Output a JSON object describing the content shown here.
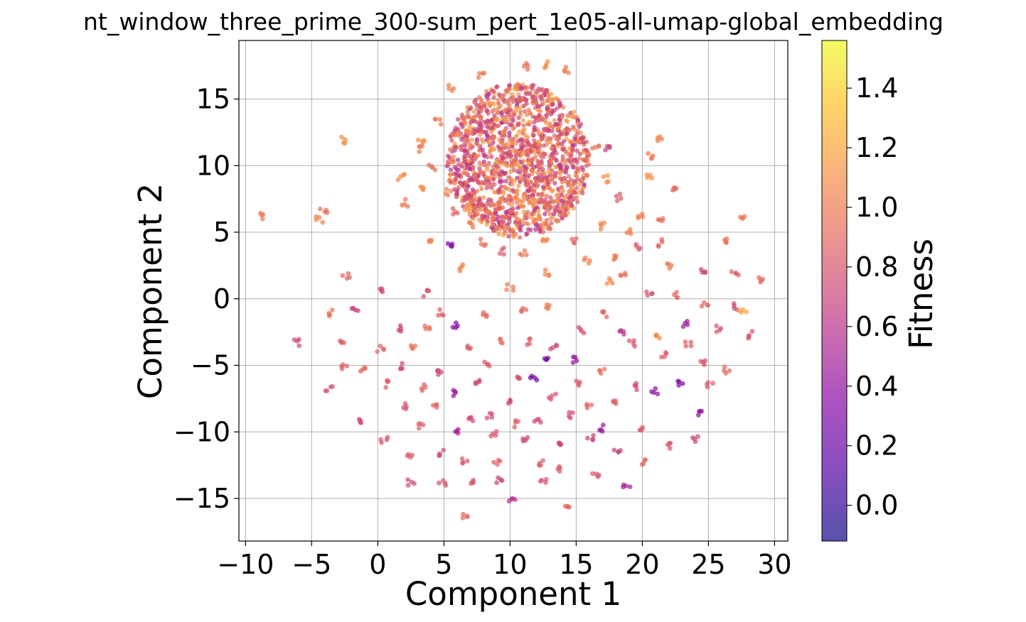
{
  "chart_data": {
    "type": "scatter",
    "title": "nt_window_three_prime_300-sum_pert_1e05-all-umap-global_embedding",
    "xlabel": "Component 1",
    "ylabel": "Component 2",
    "xlim": [
      -10.5,
      31
    ],
    "ylim": [
      -18.2,
      19.4
    ],
    "xticks": [
      -10,
      -5,
      0,
      5,
      10,
      15,
      20,
      25,
      30
    ],
    "xtick_labels": [
      "−10",
      "−5",
      "0",
      "5",
      "10",
      "15",
      "20",
      "25",
      "30"
    ],
    "yticks": [
      -15,
      -10,
      -5,
      0,
      5,
      10,
      15
    ],
    "ytick_labels": [
      "−15",
      "−10",
      "−5",
      "0",
      "5",
      "10",
      "15"
    ],
    "grid": true,
    "colormap": "plasma",
    "point_alpha": 0.7,
    "colorbar": {
      "label": "Fitness",
      "range": [
        -0.12,
        1.56
      ],
      "ticks": [
        0.0,
        0.2,
        0.4,
        0.6,
        0.8,
        1.0,
        1.2,
        1.4
      ],
      "tick_labels": [
        "0.0",
        "0.2",
        "0.4",
        "0.6",
        "0.8",
        "1.0",
        "1.2",
        "1.4"
      ]
    },
    "points": [
      {
        "x": -8.6,
        "y": 6.2,
        "fitness": 1.0
      },
      {
        "x": -4.4,
        "y": 6.0,
        "fitness": 1.05
      },
      {
        "x": -4.1,
        "y": 6.6,
        "fitness": 0.95
      },
      {
        "x": -2.5,
        "y": 11.9,
        "fitness": 1.1
      },
      {
        "x": -2.4,
        "y": 1.8,
        "fitness": 0.9
      },
      {
        "x": -6.2,
        "y": -3.3,
        "fitness": 0.75
      },
      {
        "x": -3.7,
        "y": -6.8,
        "fitness": 0.8
      },
      {
        "x": -2.8,
        "y": -3.3,
        "fitness": 0.85
      },
      {
        "x": -3.5,
        "y": -1.1,
        "fitness": 0.95
      },
      {
        "x": -1.7,
        "y": -0.7,
        "fitness": 0.7
      },
      {
        "x": -1.1,
        "y": -5.4,
        "fitness": 0.9
      },
      {
        "x": -1.3,
        "y": -9.1,
        "fitness": 0.75
      },
      {
        "x": -2.6,
        "y": -5.2,
        "fitness": 0.85
      },
      {
        "x": 0.4,
        "y": 0.6,
        "fitness": 0.75
      },
      {
        "x": 0.2,
        "y": -3.7,
        "fitness": 0.9
      },
      {
        "x": 0.7,
        "y": -6.4,
        "fitness": 0.85
      },
      {
        "x": 0.5,
        "y": -10.6,
        "fitness": 0.8
      },
      {
        "x": 1.6,
        "y": -5.0,
        "fitness": 0.75
      },
      {
        "x": 1.7,
        "y": -2.2,
        "fitness": 0.7
      },
      {
        "x": 1.8,
        "y": 9.2,
        "fitness": 1.1
      },
      {
        "x": 2.1,
        "y": 7.2,
        "fitness": 1.0
      },
      {
        "x": 2.4,
        "y": -11.8,
        "fitness": 0.85
      },
      {
        "x": 2.5,
        "y": -13.8,
        "fitness": 0.75
      },
      {
        "x": 2.6,
        "y": -3.6,
        "fitness": 0.95
      },
      {
        "x": 2.1,
        "y": -8.0,
        "fitness": 0.8
      },
      {
        "x": 3.2,
        "y": -9.5,
        "fitness": 0.85
      },
      {
        "x": 3.5,
        "y": -6.7,
        "fitness": 0.9
      },
      {
        "x": 3.8,
        "y": -2.3,
        "fitness": 0.95
      },
      {
        "x": 3.7,
        "y": 0.4,
        "fitness": 0.8
      },
      {
        "x": 3.9,
        "y": 4.5,
        "fitness": 1.05
      },
      {
        "x": 3.4,
        "y": 8.2,
        "fitness": 1.1
      },
      {
        "x": 3.1,
        "y": 11.3,
        "fitness": 1.0
      },
      {
        "x": 4.4,
        "y": -8.1,
        "fitness": 0.9
      },
      {
        "x": 4.8,
        "y": -11.6,
        "fitness": 0.75
      },
      {
        "x": 4.9,
        "y": -13.8,
        "fitness": 0.8
      },
      {
        "x": 4.6,
        "y": -5.5,
        "fitness": 0.7
      },
      {
        "x": 4.8,
        "y": -1.0,
        "fitness": 0.85
      },
      {
        "x": 5.5,
        "y": 4.2,
        "fitness": 0.3
      },
      {
        "x": 5.9,
        "y": -2.0,
        "fitness": 0.35
      },
      {
        "x": 5.9,
        "y": -7.1,
        "fitness": 0.45
      },
      {
        "x": 6.1,
        "y": -10.0,
        "fitness": 0.5
      },
      {
        "x": 6.2,
        "y": 2.3,
        "fitness": 1.05
      },
      {
        "x": 6.5,
        "y": -12.2,
        "fitness": 0.8
      },
      {
        "x": 6.7,
        "y": -16.2,
        "fitness": 0.9
      },
      {
        "x": 6.9,
        "y": -3.7,
        "fitness": 0.85
      },
      {
        "x": 7.0,
        "y": -8.9,
        "fitness": 0.75
      },
      {
        "x": 7.2,
        "y": -13.8,
        "fitness": 0.8
      },
      {
        "x": 7.6,
        "y": -6.3,
        "fitness": 0.7
      },
      {
        "x": 8.0,
        "y": -1.3,
        "fitness": 0.9
      },
      {
        "x": 8.3,
        "y": -5.0,
        "fitness": 0.85
      },
      {
        "x": 8.5,
        "y": -8.7,
        "fitness": 0.75
      },
      {
        "x": 8.7,
        "y": -10.1,
        "fitness": 0.8
      },
      {
        "x": 9.0,
        "y": -12.4,
        "fitness": 0.85
      },
      {
        "x": 9.2,
        "y": -13.6,
        "fitness": 0.7
      },
      {
        "x": 9.4,
        "y": -3.3,
        "fitness": 0.95
      },
      {
        "x": 9.8,
        "y": -7.7,
        "fitness": 0.75
      },
      {
        "x": 10.0,
        "y": 0.9,
        "fitness": 1.0
      },
      {
        "x": 10.2,
        "y": -15.0,
        "fitness": 0.6
      },
      {
        "x": 10.4,
        "y": -9.4,
        "fitness": 0.85
      },
      {
        "x": 10.8,
        "y": -5.8,
        "fitness": 0.8
      },
      {
        "x": 11.1,
        "y": -0.8,
        "fitness": 0.9
      },
      {
        "x": 11.3,
        "y": -3.2,
        "fitness": 0.85
      },
      {
        "x": 11.2,
        "y": -10.5,
        "fitness": 0.7
      },
      {
        "x": 11.8,
        "y": -6.0,
        "fitness": 0.25
      },
      {
        "x": 12.1,
        "y": -9.3,
        "fitness": 0.75
      },
      {
        "x": 12.3,
        "y": -12.3,
        "fitness": 0.85
      },
      {
        "x": 12.5,
        "y": -13.6,
        "fitness": 0.8
      },
      {
        "x": 12.6,
        "y": -4.6,
        "fitness": 0.3
      },
      {
        "x": 12.8,
        "y": 1.9,
        "fitness": 1.05
      },
      {
        "x": 13.0,
        "y": -0.5,
        "fitness": 1.0
      },
      {
        "x": 13.2,
        "y": -7.3,
        "fitness": 0.8
      },
      {
        "x": 13.3,
        "y": -3.7,
        "fitness": 0.75
      },
      {
        "x": 13.5,
        "y": -12.7,
        "fitness": 0.85
      },
      {
        "x": 13.8,
        "y": -10.8,
        "fitness": 0.7
      },
      {
        "x": 14.3,
        "y": -15.5,
        "fitness": 0.9
      },
      {
        "x": 14.6,
        "y": -8.7,
        "fitness": 0.75
      },
      {
        "x": 14.9,
        "y": -4.6,
        "fitness": 0.4
      },
      {
        "x": 15.2,
        "y": -6.4,
        "fitness": 0.85
      },
      {
        "x": 15.4,
        "y": -2.4,
        "fitness": 0.8
      },
      {
        "x": 15.8,
        "y": 2.9,
        "fitness": 1.05
      },
      {
        "x": 15.9,
        "y": -8.0,
        "fitness": 0.9
      },
      {
        "x": 16.1,
        "y": -10.4,
        "fitness": 0.7
      },
      {
        "x": 16.5,
        "y": -13.4,
        "fitness": 0.8
      },
      {
        "x": 16.8,
        "y": -9.7,
        "fitness": 0.45
      },
      {
        "x": 17.0,
        "y": -5.4,
        "fitness": 0.95
      },
      {
        "x": 17.2,
        "y": -1.2,
        "fitness": 0.9
      },
      {
        "x": 17.5,
        "y": 1.3,
        "fitness": 1.1
      },
      {
        "x": 17.8,
        "y": -7.9,
        "fitness": 0.85
      },
      {
        "x": 18.1,
        "y": -11.4,
        "fitness": 0.7
      },
      {
        "x": 18.5,
        "y": -2.4,
        "fitness": 0.6
      },
      {
        "x": 18.8,
        "y": -14.2,
        "fitness": 0.5
      },
      {
        "x": 19.2,
        "y": -3.4,
        "fitness": 0.8
      },
      {
        "x": 19.5,
        "y": -6.6,
        "fitness": 0.75
      },
      {
        "x": 19.8,
        "y": -9.9,
        "fitness": 0.85
      },
      {
        "x": 20.1,
        "y": -12.3,
        "fitness": 0.9
      },
      {
        "x": 20.5,
        "y": 0.5,
        "fitness": 0.8
      },
      {
        "x": 20.9,
        "y": -7.0,
        "fitness": 0.4
      },
      {
        "x": 21.2,
        "y": -2.9,
        "fitness": 1.1
      },
      {
        "x": 21.6,
        "y": -4.3,
        "fitness": 0.85
      },
      {
        "x": 21.9,
        "y": -11.0,
        "fitness": 0.8
      },
      {
        "x": 22.1,
        "y": 2.4,
        "fitness": 1.0
      },
      {
        "x": 22.6,
        "y": 0.3,
        "fitness": 0.9
      },
      {
        "x": 22.8,
        "y": -6.4,
        "fitness": 0.3
      },
      {
        "x": 23.3,
        "y": -1.9,
        "fitness": 0.45
      },
      {
        "x": 23.5,
        "y": -3.5,
        "fitness": 0.85
      },
      {
        "x": 24.0,
        "y": -10.6,
        "fitness": 0.75
      },
      {
        "x": 24.3,
        "y": -8.5,
        "fitness": 0.4
      },
      {
        "x": 24.5,
        "y": -4.8,
        "fitness": 0.8
      },
      {
        "x": 24.7,
        "y": -0.4,
        "fitness": 0.9
      },
      {
        "x": 24.6,
        "y": 2.1,
        "fitness": 0.7
      },
      {
        "x": 25.1,
        "y": -6.5,
        "fitness": 0.85
      },
      {
        "x": 25.8,
        "y": -2.3,
        "fitness": 0.8
      },
      {
        "x": 26.3,
        "y": 4.3,
        "fitness": 0.95
      },
      {
        "x": 26.4,
        "y": -5.4,
        "fitness": 0.9
      },
      {
        "x": 27.0,
        "y": 1.8,
        "fitness": 0.85
      },
      {
        "x": 26.9,
        "y": -0.6,
        "fitness": 0.75
      },
      {
        "x": 27.5,
        "y": 6.1,
        "fitness": 1.0
      },
      {
        "x": 27.6,
        "y": -0.8,
        "fitness": 1.2
      },
      {
        "x": 28.2,
        "y": -2.7,
        "fitness": 0.8
      },
      {
        "x": 28.9,
        "y": 1.5,
        "fitness": 0.9
      },
      {
        "x": 21.3,
        "y": 12.0,
        "fitness": 1.05
      },
      {
        "x": 20.6,
        "y": 10.8,
        "fitness": 1.0
      },
      {
        "x": 20.6,
        "y": 9.2,
        "fitness": 1.1
      },
      {
        "x": 22.4,
        "y": 8.1,
        "fitness": 0.9
      },
      {
        "x": 19.9,
        "y": 6.3,
        "fitness": 1.0
      },
      {
        "x": 21.3,
        "y": 6.1,
        "fitness": 0.95
      },
      {
        "x": 18.2,
        "y": 7.6,
        "fitness": 0.85
      },
      {
        "x": 18.9,
        "y": 5.1,
        "fitness": 1.05
      },
      {
        "x": 21.4,
        "y": 4.2,
        "fitness": 0.9
      },
      {
        "x": 19.6,
        "y": 3.9,
        "fitness": 0.85
      },
      {
        "x": 17.9,
        "y": 3.2,
        "fitness": 1.0
      },
      {
        "x": 18.6,
        "y": 2.0,
        "fitness": 0.95
      },
      {
        "x": 17.2,
        "y": 9.0,
        "fitness": 1.1
      },
      {
        "x": 16.5,
        "y": 11.5,
        "fitness": 1.0
      },
      {
        "x": 17.4,
        "y": 11.2,
        "fitness": 0.7
      },
      {
        "x": 16.9,
        "y": 5.5,
        "fitness": 1.05
      },
      {
        "x": 14.4,
        "y": 17.2,
        "fitness": 1.0
      },
      {
        "x": 12.8,
        "y": 17.6,
        "fitness": 1.1
      },
      {
        "x": 11.3,
        "y": 17.5,
        "fitness": 0.95
      },
      {
        "x": 7.8,
        "y": 16.8,
        "fitness": 1.0
      },
      {
        "x": 5.5,
        "y": 15.8,
        "fitness": 1.05
      },
      {
        "x": 4.6,
        "y": 13.3,
        "fitness": 1.0
      },
      {
        "x": 3.3,
        "y": 11.8,
        "fitness": 1.1
      },
      {
        "x": 4.1,
        "y": 9.9,
        "fitness": 0.95
      },
      {
        "x": 5.3,
        "y": 8.0,
        "fitness": 1.05
      },
      {
        "x": 5.9,
        "y": 6.6,
        "fitness": 0.9
      },
      {
        "x": 7.1,
        "y": 5.6,
        "fitness": 1.0
      },
      {
        "x": 8.0,
        "y": 4.2,
        "fitness": 0.95
      },
      {
        "x": 9.4,
        "y": 3.6,
        "fitness": 0.85
      },
      {
        "x": 11.0,
        "y": 3.5,
        "fitness": 1.0
      },
      {
        "x": 12.7,
        "y": 4.2,
        "fitness": 1.05
      },
      {
        "x": 14.8,
        "y": 4.4,
        "fitness": 0.9
      }
    ]
  }
}
